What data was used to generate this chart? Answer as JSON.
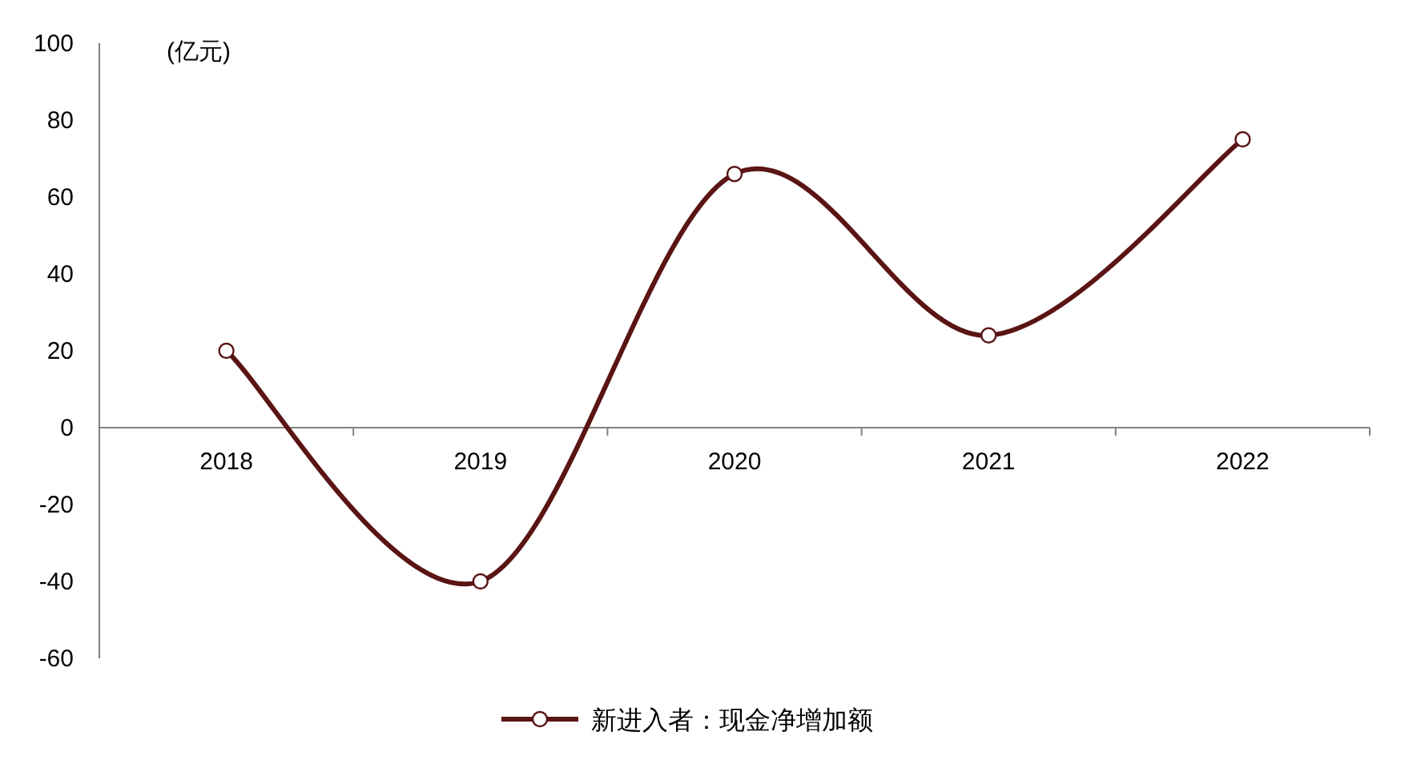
{
  "chart_data": {
    "type": "line",
    "ylabel": "(亿元)",
    "categories": [
      "2018",
      "2019",
      "2020",
      "2021",
      "2022"
    ],
    "series": [
      {
        "name": "新进入者：现金净增加额",
        "color": "#5a1414",
        "values": [
          20,
          -40,
          66,
          24,
          75
        ]
      }
    ],
    "ylim": [
      -60,
      100
    ],
    "yticks": [
      -60,
      -40,
      -20,
      0,
      20,
      40,
      60,
      80,
      100
    ],
    "marker": "circle",
    "grid": false,
    "legend": "bottom"
  }
}
